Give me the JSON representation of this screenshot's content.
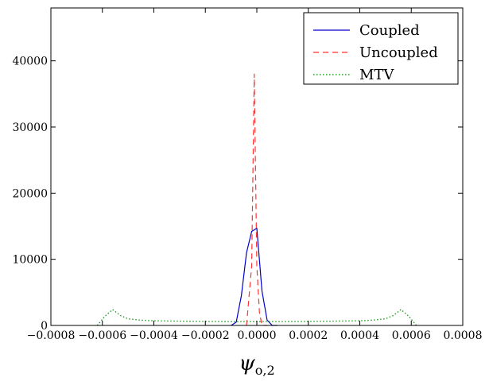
{
  "chart_data": {
    "type": "line",
    "title": "",
    "xlabel": "ψ",
    "xlabel_subscript": "o,2",
    "ylabel": "",
    "xlim": [
      -0.0008,
      0.0008
    ],
    "ylim": [
      0,
      48000
    ],
    "grid": false,
    "legend_placement": "top-right",
    "x_ticks": [
      -0.0008,
      -0.0006,
      -0.0004,
      -0.0002,
      0.0,
      0.0002,
      0.0004,
      0.0006,
      0.0008
    ],
    "x_tick_labels": [
      "−0.0008",
      "−0.0006",
      "−0.0004",
      "−0.0002",
      "0.0000",
      "0.0002",
      "0.0004",
      "0.0006",
      "0.0008"
    ],
    "y_ticks": [
      0,
      10000,
      20000,
      30000,
      40000
    ],
    "y_tick_labels": [
      "0",
      "10000",
      "20000",
      "30000",
      "40000"
    ],
    "series": [
      {
        "name": "Coupled",
        "color": "#0000cc",
        "dash": "solid",
        "x": [
          -0.0001,
          -8e-05,
          -6e-05,
          -4e-05,
          -2e-05,
          0.0,
          2e-05,
          4e-05,
          6e-05,
          8e-05
        ],
        "y": [
          0,
          500,
          4500,
          11000,
          14200,
          14700,
          5200,
          800,
          0,
          0
        ]
      },
      {
        "name": "Uncoupled",
        "color": "#ff3333",
        "dash": "dashed",
        "x": [
          -4e-05,
          -2e-05,
          -1e-05,
          0.0,
          1e-05,
          2e-05,
          4e-05
        ],
        "y": [
          0,
          9000,
          38000,
          9000,
          2000,
          0,
          0
        ]
      },
      {
        "name": "MTV",
        "color": "#229922",
        "dash": "dotted",
        "x": [
          -0.00062,
          -0.00059,
          -0.00056,
          -0.00053,
          -0.0005,
          -0.00045,
          -0.0004,
          -0.0003,
          -0.0002,
          -0.0001,
          0.0,
          0.0001,
          0.0002,
          0.0003,
          0.0004,
          0.00045,
          0.0005,
          0.00053,
          0.00056,
          0.00059,
          0.00062
        ],
        "y": [
          0,
          1400,
          2400,
          1500,
          1000,
          800,
          700,
          650,
          600,
          580,
          570,
          580,
          600,
          650,
          700,
          800,
          1000,
          1500,
          2400,
          1400,
          0
        ]
      }
    ]
  }
}
